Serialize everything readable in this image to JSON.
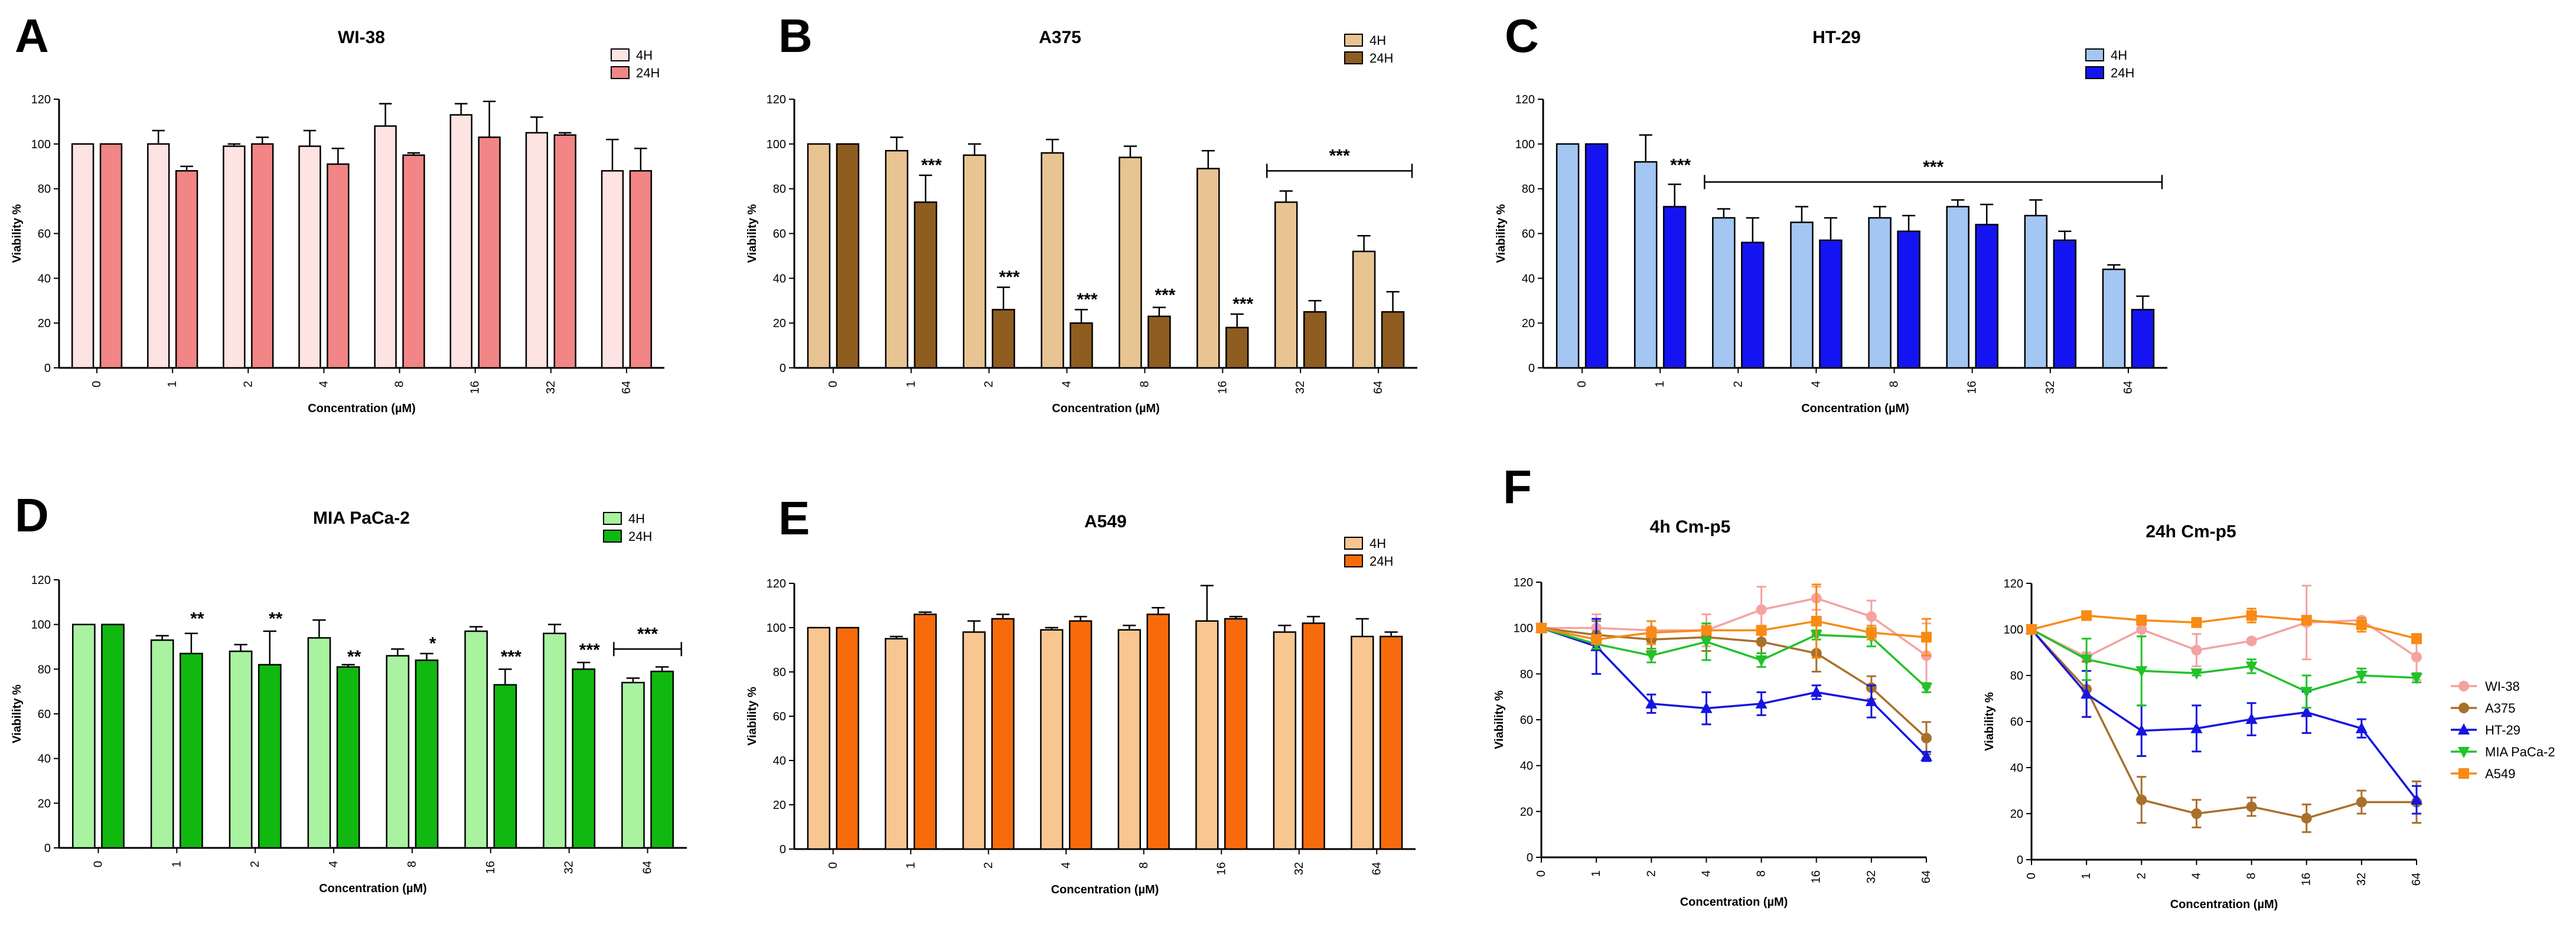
{
  "figure": {
    "colors": {
      "WI-38": {
        "4H": "#fde3e1",
        "24H": "#f28585"
      },
      "A375": {
        "4H": "#e8c493",
        "24H": "#8e5d1f"
      },
      "HT-29": {
        "4H": "#a3c6f2",
        "24H": "#1414f2"
      },
      "MIA PaCa-2": {
        "4H": "#a8f2a0",
        "24H": "#10b810"
      },
      "A549": {
        "4H": "#f8c690",
        "24H": "#f76b0c"
      },
      "lines": {
        "WI-38": "#f4a2a2",
        "A375": "#a8702b",
        "HT-29": "#1515e0",
        "MIA PaCa-2": "#22c22a",
        "A549": "#f98a14"
      }
    }
  },
  "chart_data": [
    {
      "panel": "A",
      "type": "bar",
      "title": "WI-38",
      "xlabel": "Concentration (µM)",
      "ylabel": "Viability %",
      "ylim": [
        0,
        120
      ],
      "yticks": [
        "0",
        "20",
        "40",
        "60",
        "80",
        "100",
        "120"
      ],
      "categories": [
        "0",
        "1",
        "2",
        "4",
        "8",
        "16",
        "32",
        "64"
      ],
      "legend": [
        "4H",
        "24H"
      ],
      "series": [
        {
          "name": "4H",
          "values": [
            100,
            100,
            99,
            99,
            108,
            113,
            105,
            88
          ],
          "errors": [
            0,
            6,
            1,
            7,
            10,
            5,
            7,
            14
          ]
        },
        {
          "name": "24H",
          "values": [
            100,
            88,
            100,
            91,
            95,
            103,
            104,
            88
          ],
          "errors": [
            0,
            2,
            3,
            7,
            1,
            16,
            1,
            10
          ]
        }
      ],
      "annotations": []
    },
    {
      "panel": "B",
      "type": "bar",
      "title": "A375",
      "xlabel": "Concentration (µM)",
      "ylabel": "Viability %",
      "ylim": [
        0,
        120
      ],
      "yticks": [
        "0",
        "20",
        "40",
        "60",
        "80",
        "100",
        "120"
      ],
      "categories": [
        "0",
        "1",
        "2",
        "4",
        "8",
        "16",
        "32",
        "64"
      ],
      "legend": [
        "4H",
        "24H"
      ],
      "series": [
        {
          "name": "4H",
          "values": [
            100,
            97,
            95,
            96,
            94,
            89,
            74,
            52
          ],
          "errors": [
            0,
            6,
            5,
            6,
            5,
            8,
            5,
            7
          ]
        },
        {
          "name": "24H",
          "values": [
            100,
            74,
            26,
            20,
            23,
            18,
            25,
            25
          ],
          "errors": [
            0,
            12,
            10,
            6,
            4,
            6,
            5,
            9
          ]
        }
      ],
      "annotations": [
        {
          "text": "***",
          "category": 1,
          "value": 88
        },
        {
          "text": "***",
          "category": 2,
          "value": 38
        },
        {
          "text": "***",
          "category": 3,
          "value": 28
        },
        {
          "text": "***",
          "category": 4,
          "value": 30
        },
        {
          "text": "***",
          "category": 5,
          "value": 26
        }
      ],
      "brackets": [
        {
          "text": "***",
          "from": 6,
          "to": 7,
          "value": 88
        }
      ]
    },
    {
      "panel": "C",
      "type": "bar",
      "title": "HT-29",
      "xlabel": "Concentration (µM)",
      "ylabel": "Viability %",
      "ylim": [
        0,
        120
      ],
      "yticks": [
        "0",
        "20",
        "40",
        "60",
        "80",
        "100",
        "120"
      ],
      "categories": [
        "0",
        "1",
        "2",
        "4",
        "8",
        "16",
        "32",
        "64"
      ],
      "legend": [
        "4H",
        "24H"
      ],
      "series": [
        {
          "name": "4H",
          "values": [
            100,
            92,
            67,
            65,
            67,
            72,
            68,
            44
          ],
          "errors": [
            0,
            12,
            4,
            7,
            5,
            3,
            7,
            2
          ]
        },
        {
          "name": "24H",
          "values": [
            100,
            72,
            56,
            57,
            61,
            64,
            57,
            26
          ],
          "errors": [
            0,
            10,
            11,
            10,
            7,
            9,
            4,
            6
          ]
        }
      ],
      "annotations": [
        {
          "text": "***",
          "category": 1,
          "value": 88
        }
      ],
      "brackets": [
        {
          "text": "***",
          "from": 2,
          "to": 7,
          "value": 83
        }
      ]
    },
    {
      "panel": "D",
      "type": "bar",
      "title": "MIA PaCa-2",
      "xlabel": "Concentration (µM)",
      "ylabel": "Viability %",
      "ylim": [
        0,
        120
      ],
      "yticks": [
        "0",
        "20",
        "40",
        "60",
        "80",
        "100",
        "120"
      ],
      "categories": [
        "0",
        "1",
        "2",
        "4",
        "8",
        "16",
        "32",
        "64"
      ],
      "legend": [
        "4H",
        "24H"
      ],
      "series": [
        {
          "name": "4H",
          "values": [
            100,
            93,
            88,
            94,
            86,
            97,
            96,
            74
          ],
          "errors": [
            0,
            2,
            3,
            8,
            3,
            2,
            4,
            2
          ]
        },
        {
          "name": "24H",
          "values": [
            100,
            87,
            82,
            81,
            84,
            73,
            80,
            79
          ],
          "errors": [
            0,
            9,
            15,
            1,
            3,
            7,
            3,
            2
          ]
        }
      ],
      "annotations": [
        {
          "text": "**",
          "category": 1,
          "value": 100
        },
        {
          "text": "**",
          "category": 2,
          "value": 100
        },
        {
          "text": "**",
          "category": 3,
          "value": 83
        },
        {
          "text": "*",
          "category": 4,
          "value": 89
        },
        {
          "text": "***",
          "category": 5,
          "value": 83
        },
        {
          "text": "***",
          "category": 6,
          "value": 86
        }
      ],
      "brackets": [
        {
          "text": "***",
          "from": 7,
          "to": 7,
          "value": 89
        }
      ]
    },
    {
      "panel": "E",
      "type": "bar",
      "title": "A549",
      "xlabel": "Concentration (µM)",
      "ylabel": "Viability %",
      "ylim": [
        0,
        120
      ],
      "yticks": [
        "0",
        "20",
        "40",
        "60",
        "80",
        "100",
        "120"
      ],
      "categories": [
        "0",
        "1",
        "2",
        "4",
        "8",
        "16",
        "32",
        "64"
      ],
      "legend": [
        "4H",
        "24H"
      ],
      "series": [
        {
          "name": "4H",
          "values": [
            100,
            95,
            98,
            99,
            99,
            103,
            98,
            96
          ],
          "errors": [
            0,
            1,
            5,
            1,
            2,
            16,
            3,
            8
          ]
        },
        {
          "name": "24H",
          "values": [
            100,
            106,
            104,
            103,
            106,
            104,
            102,
            96
          ],
          "errors": [
            0,
            1,
            2,
            2,
            3,
            1,
            3,
            2
          ]
        }
      ],
      "annotations": []
    },
    {
      "panel": "F",
      "type": "line",
      "title": "4h Cm-p5",
      "xlabel": "Concentration (µM)",
      "ylabel": "Viability %",
      "ylim": [
        0,
        120
      ],
      "yticks": [
        "0",
        "20",
        "40",
        "60",
        "80",
        "100",
        "120"
      ],
      "x": [
        "0",
        "1",
        "2",
        "4",
        "8",
        "16",
        "32",
        "64"
      ],
      "series": [
        {
          "name": "WI-38",
          "values": [
            100,
            100,
            99,
            99,
            108,
            113,
            105,
            88
          ],
          "errors": [
            0,
            6,
            1,
            7,
            10,
            5,
            7,
            14
          ]
        },
        {
          "name": "A375",
          "values": [
            100,
            97,
            95,
            96,
            94,
            89,
            74,
            52
          ],
          "errors": [
            0,
            6,
            5,
            6,
            5,
            8,
            5,
            7
          ]
        },
        {
          "name": "HT-29",
          "values": [
            100,
            92,
            67,
            65,
            67,
            72,
            68,
            44
          ],
          "errors": [
            0,
            12,
            4,
            7,
            5,
            3,
            7,
            2
          ]
        },
        {
          "name": "MIA PaCa-2",
          "values": [
            100,
            93,
            88,
            94,
            86,
            97,
            96,
            74
          ],
          "errors": [
            0,
            2,
            3,
            8,
            3,
            2,
            4,
            2
          ]
        },
        {
          "name": "A549",
          "values": [
            100,
            95,
            98,
            99,
            99,
            103,
            98,
            96
          ],
          "errors": [
            0,
            1,
            5,
            1,
            2,
            16,
            3,
            8
          ]
        }
      ]
    },
    {
      "panel": "",
      "type": "line",
      "title": "24h Cm-p5",
      "xlabel": "Concentration (µM)",
      "ylabel": "Viability %",
      "ylim": [
        0,
        120
      ],
      "yticks": [
        "0",
        "20",
        "40",
        "60",
        "80",
        "100",
        "120"
      ],
      "x": [
        "0",
        "1",
        "2",
        "4",
        "8",
        "16",
        "32",
        "64"
      ],
      "series": [
        {
          "name": "WI-38",
          "values": [
            100,
            88,
            100,
            91,
            95,
            103,
            104,
            88
          ],
          "errors": [
            0,
            2,
            3,
            7,
            1,
            16,
            1,
            10
          ]
        },
        {
          "name": "A375",
          "values": [
            100,
            74,
            26,
            20,
            23,
            18,
            25,
            25
          ],
          "errors": [
            0,
            12,
            10,
            6,
            4,
            6,
            5,
            9
          ]
        },
        {
          "name": "HT-29",
          "values": [
            100,
            72,
            56,
            57,
            61,
            64,
            57,
            26
          ],
          "errors": [
            0,
            10,
            11,
            10,
            7,
            9,
            4,
            6
          ]
        },
        {
          "name": "MIA PaCa-2",
          "values": [
            100,
            87,
            82,
            81,
            84,
            73,
            80,
            79
          ],
          "errors": [
            0,
            9,
            15,
            1,
            3,
            7,
            3,
            2
          ]
        },
        {
          "name": "A549",
          "values": [
            100,
            106,
            104,
            103,
            106,
            104,
            102,
            96
          ],
          "errors": [
            0,
            1,
            2,
            2,
            3,
            1,
            3,
            2
          ]
        }
      ],
      "legend": [
        "WI-38",
        "A375",
        "HT-29",
        "MIA PaCa-2",
        "A549"
      ]
    }
  ]
}
